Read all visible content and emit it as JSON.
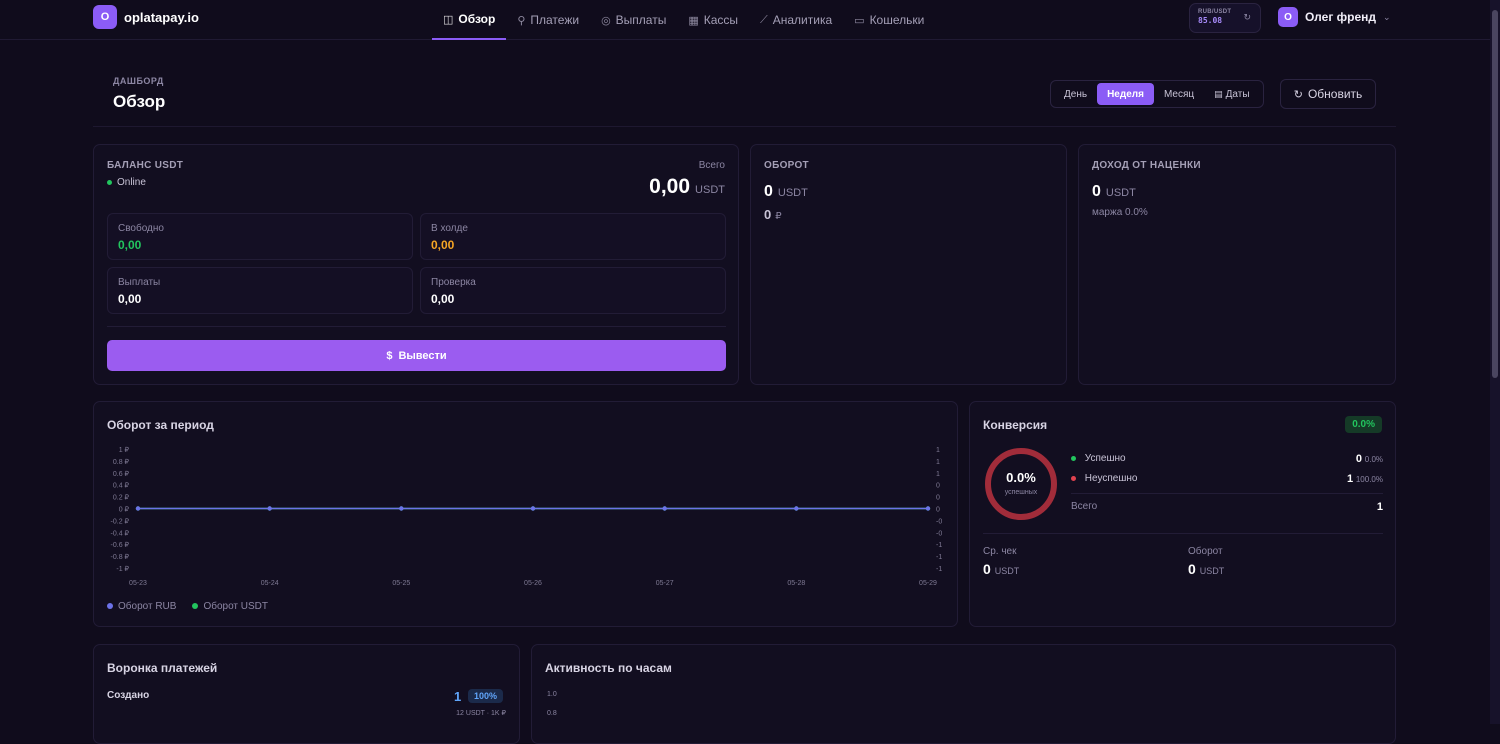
{
  "app": {
    "name": "oplatapay.io",
    "logo_letter": "O"
  },
  "nav": {
    "items": [
      {
        "label": "Обзор",
        "icon": "dashboard-icon",
        "active": true
      },
      {
        "label": "Платежи",
        "icon": "link-icon",
        "active": false
      },
      {
        "label": "Выплаты",
        "icon": "payout-icon",
        "active": false
      },
      {
        "label": "Кассы",
        "icon": "cashbox-icon",
        "active": false
      },
      {
        "label": "Аналитика",
        "icon": "analytics-icon",
        "active": false
      },
      {
        "label": "Кошельки",
        "icon": "wallet-icon",
        "active": false
      }
    ]
  },
  "rate": {
    "label": "RUB/USDT",
    "value": "85.08"
  },
  "user": {
    "initial": "O",
    "name": "Олег френд"
  },
  "header": {
    "crumb": "ДАШБОРД",
    "title": "Обзор",
    "periods": [
      "День",
      "Неделя",
      "Месяц",
      "Даты"
    ],
    "active_period": "Неделя",
    "refresh_label": "Обновить"
  },
  "balance": {
    "title": "БАЛАНС USDT",
    "status": "Online",
    "total_label": "Всего",
    "total_value": "0,00",
    "total_unit": "USDT",
    "free_label": "Свободно",
    "free_value": "0,00",
    "hold_label": "В холде",
    "hold_value": "0,00",
    "payouts_label": "Выплаты",
    "payouts_value": "0,00",
    "check_label": "Проверка",
    "check_value": "0,00",
    "withdraw_label": "Вывести"
  },
  "turnover": {
    "title": "ОБОРОТ",
    "usdt_value": "0",
    "usdt_unit": "USDT",
    "rub_value": "0",
    "rub_unit": "₽"
  },
  "markup": {
    "title": "ДОХОД ОТ НАЦЕНКИ",
    "value": "0",
    "unit": "USDT",
    "margin": "маржа 0.0%"
  },
  "period_chart": {
    "title": "Оборот за период",
    "legend_rub": "Оборот RUB",
    "legend_usdt": "Оборот USDT"
  },
  "chart_data": {
    "type": "line",
    "title": "Оборот за период",
    "categories": [
      "05-23",
      "05-24",
      "05-25",
      "05-26",
      "05-27",
      "05-28",
      "05-29"
    ],
    "series": [
      {
        "name": "Оборот RUB",
        "values": [
          0,
          0,
          0,
          0,
          0,
          0,
          0
        ]
      },
      {
        "name": "Оборот USDT",
        "values": [
          0,
          0,
          0,
          0,
          0,
          0,
          0
        ]
      }
    ],
    "ylim": [
      -1,
      1
    ],
    "left_ticks": [
      "1 ₽",
      "0.8 ₽",
      "0.6 ₽",
      "0.4 ₽",
      "0.2 ₽",
      "0 ₽",
      "-0.2 ₽",
      "-0.4 ₽",
      "-0.6 ₽",
      "-0.8 ₽",
      "-1 ₽"
    ],
    "right_ticks": [
      "1",
      "1",
      "1",
      "0",
      "0",
      "0",
      "-0",
      "-0",
      "-1",
      "-1",
      "-1"
    ],
    "legend_position": "bottom-left",
    "colors": {
      "rub": "#6c72e8",
      "usdt": "#22c55e"
    }
  },
  "conversion": {
    "title": "Конверсия",
    "badge": "0.0%",
    "donut_value": "0.0%",
    "donut_label": "успешных",
    "success_fraction": 0.0,
    "success_label": "Успешно",
    "success_count": "0",
    "success_pct": "0.0%",
    "fail_label": "Неуспешно",
    "fail_count": "1",
    "fail_pct": "100.0%",
    "total_label": "Всего",
    "total_value": "1",
    "avg_label": "Ср. чек",
    "avg_value": "0",
    "avg_unit": "USDT",
    "turnover_label": "Оборот",
    "turnover_value": "0",
    "turnover_unit": "USDT"
  },
  "funnel": {
    "title": "Воронка платежей",
    "created_label": "Создано",
    "created_count": "1",
    "created_pct": "100%",
    "created_sub": "12 USDT · 1K ₽"
  },
  "activity": {
    "title": "Активность по часам",
    "tick_1": "1.0",
    "tick_2": "0.8"
  },
  "colors": {
    "accent": "#8b5cf6",
    "green": "#22c55e",
    "amber": "#f5a524",
    "red": "#e0424f",
    "bg": "#100c1c"
  }
}
